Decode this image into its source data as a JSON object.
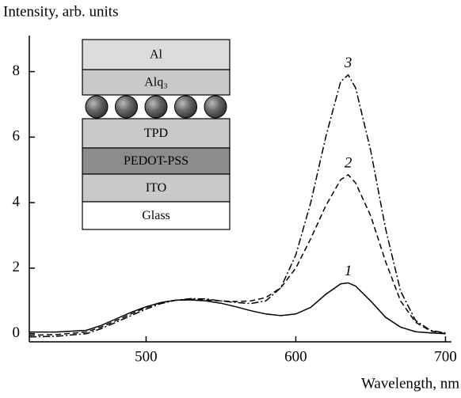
{
  "chart_data": {
    "type": "line",
    "y_label": "Intensity, arb. units",
    "x_label": "Wavelength, nm",
    "x": [
      422,
      440,
      460,
      470,
      480,
      490,
      500,
      510,
      520,
      530,
      540,
      550,
      560,
      570,
      580,
      590,
      600,
      610,
      620,
      630,
      635,
      640,
      650,
      660,
      670,
      680,
      690,
      700
    ],
    "series": [
      {
        "name": "1",
        "color": "#000000",
        "line_style": "solid",
        "values": [
          0.05,
          0.05,
          0.1,
          0.25,
          0.45,
          0.65,
          0.82,
          0.95,
          1.02,
          1.03,
          1.0,
          0.93,
          0.82,
          0.7,
          0.6,
          0.55,
          0.6,
          0.8,
          1.2,
          1.52,
          1.55,
          1.45,
          1.0,
          0.5,
          0.2,
          0.06,
          0.02,
          0.0
        ]
      },
      {
        "name": "2",
        "color": "#000000",
        "line_style": "dashed",
        "values": [
          -0.05,
          -0.03,
          0.05,
          0.2,
          0.4,
          0.6,
          0.8,
          0.95,
          1.02,
          1.05,
          1.03,
          1.0,
          0.98,
          1.0,
          1.1,
          1.4,
          2.0,
          2.9,
          3.9,
          4.7,
          4.85,
          4.6,
          3.6,
          2.2,
          1.0,
          0.35,
          0.08,
          0.0
        ]
      },
      {
        "name": "3",
        "color": "#000000",
        "line_style": "dashdot",
        "values": [
          -0.1,
          -0.08,
          0.0,
          0.15,
          0.35,
          0.55,
          0.75,
          0.92,
          1.02,
          1.07,
          1.06,
          1.0,
          0.95,
          0.92,
          1.0,
          1.4,
          2.4,
          4.0,
          6.0,
          7.7,
          7.9,
          7.5,
          5.6,
          3.2,
          1.3,
          0.4,
          0.1,
          0.02
        ]
      }
    ],
    "xlim": [
      422,
      704
    ],
    "ylim": [
      -0.25,
      9.1
    ],
    "xticks": [
      500,
      600,
      700
    ],
    "yticks": [
      0,
      2,
      4,
      6,
      8
    ]
  },
  "inset": {
    "layers": [
      "Al",
      "Alq₃",
      "TPD",
      "PEDOT-PSS",
      "ITO",
      "Glass"
    ]
  }
}
